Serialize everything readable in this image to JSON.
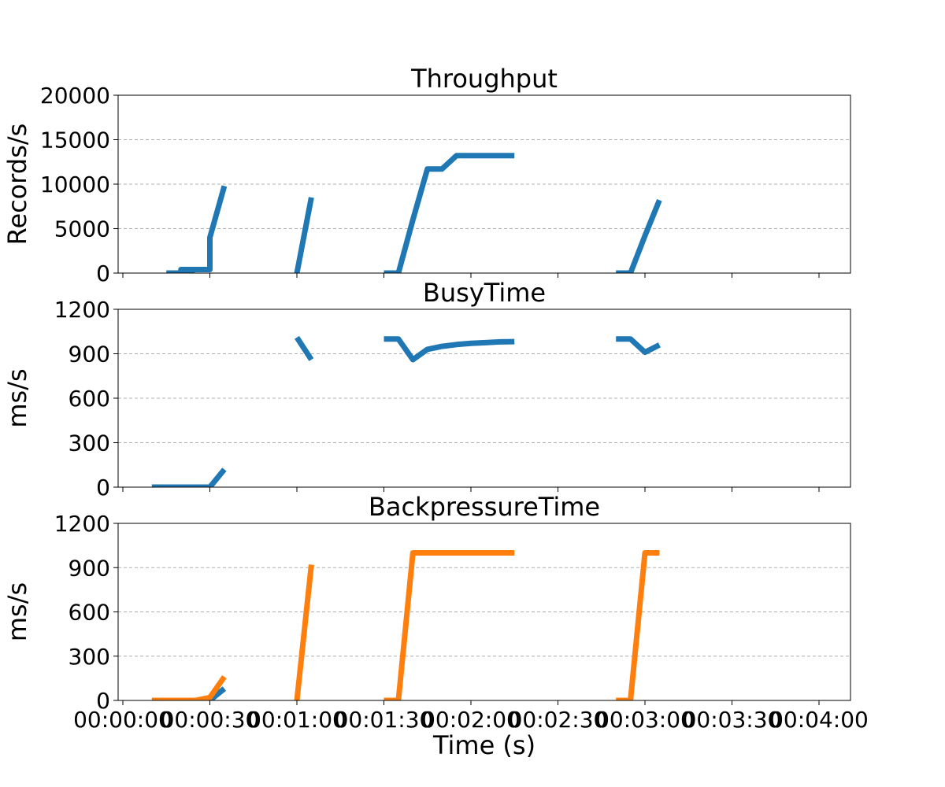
{
  "chart_data": [
    {
      "type": "line",
      "title": "Throughput",
      "ylabel": "Records/s",
      "xlabel": "",
      "ylim": [
        0,
        20000
      ],
      "yticks": [
        "0",
        "5000",
        "10000",
        "15000",
        "20000"
      ],
      "ytick_values": [
        0,
        5000,
        10000,
        15000,
        20000
      ],
      "xlim": [
        "00:00:00",
        "00:04:00"
      ],
      "grid": "y-dashed",
      "series": [
        {
          "color": "#1f77b4",
          "segments": [
            [
              [
                "00:00:15",
                0
              ],
              [
                "00:00:20",
                0
              ],
              [
                "00:00:25",
                400
              ],
              [
                "00:00:20",
                400
              ],
              [
                "00:00:25",
                400
              ],
              [
                "00:00:30",
                400
              ],
              [
                "00:00:30",
                4000
              ],
              [
                "00:00:35",
                9800
              ]
            ],
            [
              [
                "00:01:00",
                0
              ],
              [
                "00:01:05",
                8500
              ]
            ],
            [
              [
                "00:01:30",
                0
              ],
              [
                "00:01:35",
                0
              ],
              [
                "00:01:40",
                6000
              ],
              [
                "00:01:45",
                11700
              ],
              [
                "00:01:50",
                11700
              ],
              [
                "00:01:55",
                13200
              ],
              [
                "00:02:00",
                13200
              ],
              [
                "00:02:15",
                13200
              ]
            ],
            [
              [
                "00:02:50",
                0
              ],
              [
                "00:02:55",
                0
              ],
              [
                "00:03:00",
                4200
              ],
              [
                "00:03:05",
                8200
              ]
            ]
          ]
        }
      ]
    },
    {
      "type": "line",
      "title": "BusyTime",
      "ylabel": "ms/s",
      "xlabel": "",
      "ylim": [
        0,
        1200
      ],
      "yticks": [
        "0",
        "300",
        "600",
        "900",
        "1200"
      ],
      "ytick_values": [
        0,
        300,
        600,
        900,
        1200
      ],
      "xlim": [
        "00:00:00",
        "00:04:00"
      ],
      "grid": "y-dashed",
      "series": [
        {
          "color": "#1f77b4",
          "segments": [
            [
              [
                "00:00:10",
                0
              ],
              [
                "00:00:30",
                0
              ],
              [
                "00:00:35",
                120
              ]
            ],
            [
              [
                "00:01:00",
                1010
              ],
              [
                "00:01:05",
                860
              ]
            ],
            [
              [
                "00:01:30",
                1000
              ],
              [
                "00:01:35",
                1000
              ],
              [
                "00:01:40",
                860
              ],
              [
                "00:01:45",
                930
              ],
              [
                "00:01:50",
                950
              ],
              [
                "00:01:55",
                962
              ],
              [
                "00:02:00",
                970
              ],
              [
                "00:02:05",
                975
              ],
              [
                "00:02:10",
                980
              ],
              [
                "00:02:15",
                982
              ]
            ],
            [
              [
                "00:02:50",
                1000
              ],
              [
                "00:02:55",
                1000
              ],
              [
                "00:03:00",
                910
              ],
              [
                "00:03:05",
                960
              ]
            ]
          ]
        }
      ]
    },
    {
      "type": "line",
      "title": "BackpressureTime",
      "ylabel": "ms/s",
      "xlabel": "Time (s)",
      "ylim": [
        0,
        1200
      ],
      "yticks": [
        "0",
        "300",
        "600",
        "900",
        "1200"
      ],
      "ytick_values": [
        0,
        300,
        600,
        900,
        1200
      ],
      "xlim": [
        "00:00:00",
        "00:04:00"
      ],
      "xticks": [
        "00:00:00",
        "00:00:30",
        "00:01:00",
        "00:01:30",
        "00:02:00",
        "00:02:30",
        "00:03:00",
        "00:03:30",
        "00:04:00"
      ],
      "grid": "y-dashed",
      "series": [
        {
          "color": "#1f77b4",
          "segments": [
            [
              [
                "00:00:30",
                0
              ],
              [
                "00:00:35",
                80
              ]
            ]
          ]
        },
        {
          "color": "#ff7f0e",
          "segments": [
            [
              [
                "00:00:10",
                0
              ],
              [
                "00:00:25",
                0
              ],
              [
                "00:00:30",
                20
              ],
              [
                "00:00:35",
                160
              ]
            ],
            [
              [
                "00:01:00",
                0
              ],
              [
                "00:01:05",
                920
              ]
            ],
            [
              [
                "00:01:30",
                0
              ],
              [
                "00:01:35",
                0
              ],
              [
                "00:01:40",
                1000
              ],
              [
                "00:02:15",
                1000
              ]
            ],
            [
              [
                "00:02:50",
                0
              ],
              [
                "00:02:55",
                0
              ],
              [
                "00:03:00",
                1000
              ],
              [
                "00:03:05",
                1000
              ]
            ]
          ]
        }
      ]
    }
  ]
}
